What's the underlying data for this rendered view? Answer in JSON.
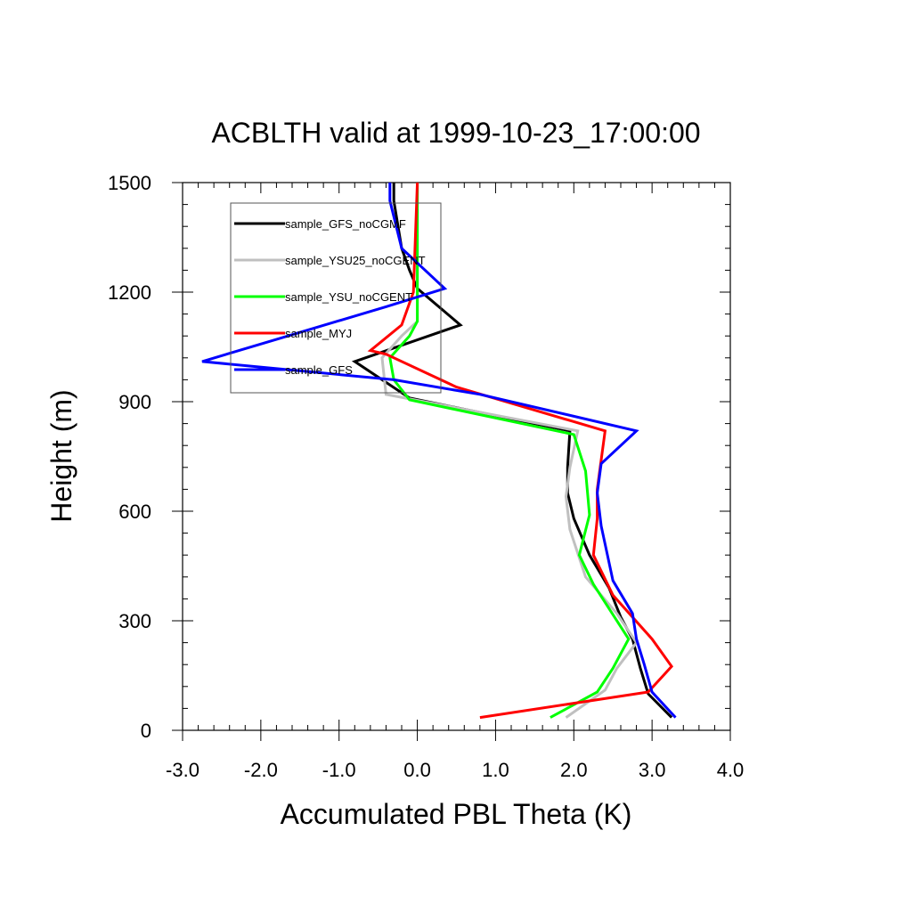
{
  "chart_data": {
    "type": "line",
    "title": "ACBLTH valid at 1999-10-23_17:00:00",
    "xlabel": "Accumulated PBL Theta (K)",
    "ylabel": "Height (m)",
    "xlim": [
      -3.0,
      4.0
    ],
    "ylim": [
      0,
      1500
    ],
    "xticks": [
      -3.0,
      -2.0,
      -1.0,
      0.0,
      1.0,
      2.0,
      3.0,
      4.0
    ],
    "xtick_labels": [
      "-3.0",
      "-2.0",
      "-1.0",
      "0.0",
      "1.0",
      "2.0",
      "3.0",
      "4.0"
    ],
    "yticks": [
      0,
      300,
      600,
      900,
      1200,
      1500
    ],
    "ytick_labels": [
      "0",
      "300",
      "600",
      "900",
      "1200",
      "1500"
    ],
    "grid": false,
    "legend_position": "top-left",
    "series": [
      {
        "name": "sample_GFS_noCGMF",
        "color": "#000000",
        "points": [
          [
            3.25,
            35
          ],
          [
            2.95,
            100
          ],
          [
            2.85,
            170
          ],
          [
            2.75,
            250
          ],
          [
            2.6,
            310
          ],
          [
            2.45,
            390
          ],
          [
            2.2,
            480
          ],
          [
            2.0,
            580
          ],
          [
            1.92,
            650
          ],
          [
            1.92,
            720
          ],
          [
            1.95,
            820
          ],
          [
            -0.1,
            910
          ],
          [
            -0.8,
            1010
          ],
          [
            0.55,
            1110
          ],
          [
            0.0,
            1210
          ],
          [
            -0.1,
            1260
          ],
          [
            -0.2,
            1320
          ],
          [
            -0.3,
            1450
          ],
          [
            -0.3,
            1500
          ]
        ]
      },
      {
        "name": "sample_YSU25_noCGENT",
        "color": "#c0c0c0",
        "points": [
          [
            1.9,
            35
          ],
          [
            2.4,
            110
          ],
          [
            2.55,
            170
          ],
          [
            2.8,
            240
          ],
          [
            2.55,
            320
          ],
          [
            2.15,
            420
          ],
          [
            1.95,
            550
          ],
          [
            1.9,
            640
          ],
          [
            1.95,
            720
          ],
          [
            2.05,
            820
          ],
          [
            -0.4,
            920
          ],
          [
            -0.45,
            1020
          ],
          [
            -0.2,
            1080
          ],
          [
            0.0,
            1120
          ],
          [
            0.0,
            1500
          ]
        ]
      },
      {
        "name": "sample_YSU_noCGENT",
        "color": "#00ff00",
        "points": [
          [
            1.7,
            35
          ],
          [
            2.3,
            105
          ],
          [
            2.5,
            170
          ],
          [
            2.7,
            250
          ],
          [
            2.25,
            400
          ],
          [
            2.07,
            480
          ],
          [
            2.2,
            590
          ],
          [
            2.15,
            710
          ],
          [
            2.0,
            810
          ],
          [
            -0.1,
            905
          ],
          [
            -0.3,
            960
          ],
          [
            -0.35,
            1020
          ],
          [
            -0.1,
            1080
          ],
          [
            0.0,
            1120
          ],
          [
            0.0,
            1500
          ]
        ]
      },
      {
        "name": "sample_MYJ",
        "color": "#ff0000",
        "points": [
          [
            0.8,
            35
          ],
          [
            2.95,
            105
          ],
          [
            3.25,
            175
          ],
          [
            3.0,
            250
          ],
          [
            2.5,
            370
          ],
          [
            2.25,
            480
          ],
          [
            2.3,
            580
          ],
          [
            2.3,
            660
          ],
          [
            2.35,
            740
          ],
          [
            2.4,
            820
          ],
          [
            0.5,
            940
          ],
          [
            -0.4,
            1030
          ],
          [
            -0.6,
            1040
          ],
          [
            -0.2,
            1110
          ],
          [
            -0.05,
            1200
          ],
          [
            0.0,
            1500
          ]
        ]
      },
      {
        "name": "sample_GFS",
        "color": "#0000ff",
        "points": [
          [
            3.3,
            35
          ],
          [
            3.0,
            105
          ],
          [
            2.9,
            180
          ],
          [
            2.8,
            250
          ],
          [
            2.75,
            320
          ],
          [
            2.5,
            410
          ],
          [
            2.35,
            560
          ],
          [
            2.3,
            650
          ],
          [
            2.35,
            730
          ],
          [
            2.8,
            820
          ],
          [
            0.8,
            920
          ],
          [
            -0.3,
            960
          ],
          [
            -2.75,
            1010
          ],
          [
            -0.4,
            1160
          ],
          [
            0.35,
            1210
          ],
          [
            -0.2,
            1320
          ],
          [
            -0.35,
            1450
          ],
          [
            -0.35,
            1500
          ]
        ]
      }
    ]
  }
}
